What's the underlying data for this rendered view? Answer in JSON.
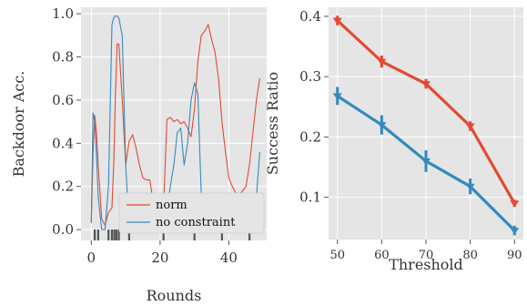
{
  "colors": {
    "panel_bg": "#E5E5E5",
    "grid": "#FFFFFF",
    "norm": "#E24A33",
    "no_constraint": "#348ABD",
    "rug": "#555555"
  },
  "chart_data": [
    {
      "type": "line",
      "xlabel": "Rounds",
      "ylabel": "Backdoor Acc.",
      "xlim": [
        -3,
        51
      ],
      "ylim": [
        -0.05,
        1.03
      ],
      "xticks": [
        0,
        20,
        40
      ],
      "yticks": [
        0.0,
        0.2,
        0.4,
        0.6,
        0.8,
        1.0
      ],
      "xtick_labels": [
        "0",
        "20",
        "40"
      ],
      "ytick_labels": [
        "0.0",
        "0.2",
        "0.4",
        "0.6",
        "0.8",
        "1.0"
      ],
      "grid": true,
      "legend": "lower-right",
      "series": [
        {
          "name": "norm",
          "color_key": "norm",
          "x": [
            0,
            0.5,
            1,
            1.5,
            2,
            3,
            4,
            5,
            6,
            6.5,
            7,
            7.5,
            8,
            9,
            10,
            11,
            12,
            13,
            14,
            15,
            16,
            17,
            18,
            19,
            20,
            21,
            22,
            23,
            24,
            25,
            26,
            27,
            28,
            29,
            30,
            31,
            32,
            33,
            34,
            35,
            36,
            37,
            38,
            39,
            40,
            41,
            42,
            43,
            44,
            45,
            46,
            47,
            48,
            49
          ],
          "y": [
            0.04,
            0.35,
            0.53,
            0.45,
            0.3,
            0.05,
            0.02,
            0.08,
            0.1,
            0.3,
            0.62,
            0.86,
            0.86,
            0.6,
            0.3,
            0.41,
            0.44,
            0.38,
            0.3,
            0.24,
            0.23,
            0.23,
            0.13,
            0.06,
            0.05,
            0.1,
            0.51,
            0.52,
            0.5,
            0.51,
            0.49,
            0.5,
            0.47,
            0.43,
            0.56,
            0.78,
            0.9,
            0.92,
            0.95,
            0.88,
            0.82,
            0.7,
            0.5,
            0.36,
            0.24,
            0.2,
            0.17,
            0.16,
            0.18,
            0.2,
            0.3,
            0.45,
            0.6,
            0.7
          ]
        },
        {
          "name": "no constraint",
          "color_key": "no_constraint",
          "x": [
            0,
            0.5,
            1,
            1.5,
            2,
            3,
            4,
            5,
            6,
            6.5,
            7,
            7.5,
            8,
            9,
            10,
            11,
            12,
            13,
            14,
            15,
            16,
            17,
            18,
            19,
            20,
            21,
            22,
            23,
            24,
            25,
            26,
            27,
            28,
            29,
            30,
            31,
            32,
            33,
            34,
            35,
            36,
            37,
            38,
            39,
            40,
            41,
            42,
            43,
            44,
            45,
            46,
            47,
            48,
            49
          ],
          "y": [
            0.03,
            0.54,
            0.5,
            0.35,
            0.15,
            0.0,
            0.0,
            0.2,
            0.95,
            0.98,
            0.99,
            0.99,
            0.98,
            0.9,
            0.3,
            0.0,
            0.0,
            0.0,
            0.0,
            0.0,
            0.0,
            0.0,
            0.0,
            0.0,
            0.0,
            0.0,
            0.1,
            0.2,
            0.3,
            0.45,
            0.47,
            0.3,
            0.4,
            0.6,
            0.68,
            0.63,
            0.15,
            0.02,
            0.0,
            0.0,
            0.0,
            0.0,
            0.0,
            0.0,
            0.0,
            0.0,
            0.0,
            0.0,
            0.0,
            0.0,
            0.0,
            0.0,
            0.15,
            0.36
          ]
        }
      ],
      "rug_x": [
        1,
        2,
        5,
        6,
        6.7,
        7.3,
        8,
        11,
        21,
        30,
        38,
        46
      ]
    },
    {
      "type": "line",
      "xlabel": "Threshold",
      "ylabel": "Success Ratio",
      "xlim": [
        48,
        92
      ],
      "ylim": [
        0.03,
        0.415
      ],
      "xticks": [
        50,
        60,
        70,
        80,
        90
      ],
      "yticks": [
        0.1,
        0.2,
        0.3,
        0.4
      ],
      "xtick_labels": [
        "50",
        "60",
        "70",
        "80",
        "90"
      ],
      "ytick_labels": [
        "0.1",
        "0.2",
        "0.3",
        "0.4"
      ],
      "grid": true,
      "series": [
        {
          "color_key": "norm",
          "marker": "triangle-down",
          "x": [
            50,
            60,
            70,
            80,
            90
          ],
          "y": [
            0.393,
            0.325,
            0.288,
            0.218,
            0.09
          ],
          "err": [
            0.008,
            0.01,
            0.008,
            0.008,
            0.006
          ]
        },
        {
          "color_key": "no_constraint",
          "marker": "triangle-down",
          "x": [
            50,
            60,
            70,
            80,
            90
          ],
          "y": [
            0.268,
            0.22,
            0.16,
            0.118,
            0.045
          ],
          "err": [
            0.015,
            0.016,
            0.018,
            0.013,
            0.008
          ]
        }
      ]
    }
  ]
}
